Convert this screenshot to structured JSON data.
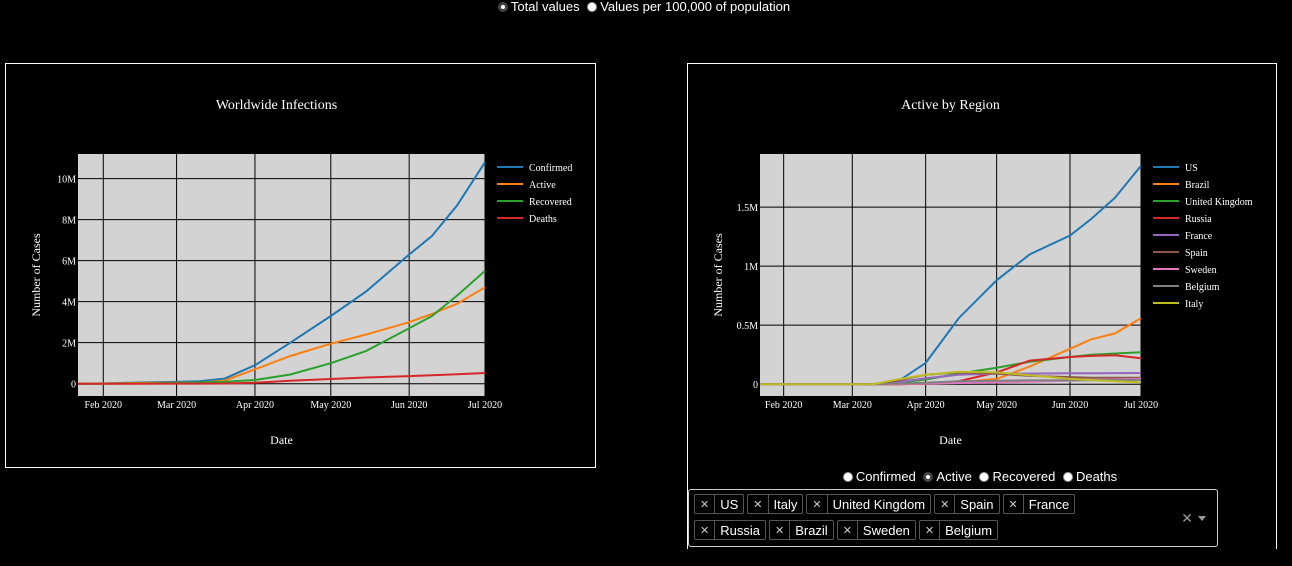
{
  "top_toggle": {
    "options": [
      "Total values",
      "Values per 100,000 of population"
    ],
    "selected": 0
  },
  "metric_toggle": {
    "options": [
      "Confirmed",
      "Active",
      "Recovered",
      "Deaths"
    ],
    "selected": 1
  },
  "region_select": {
    "selected": [
      "US",
      "Italy",
      "United Kingdom",
      "Spain",
      "France",
      "Russia",
      "Brazil",
      "Sweden",
      "Belgium"
    ]
  },
  "chart_data": [
    {
      "type": "line",
      "title": "Worldwide Infections",
      "xlabel": "Date",
      "ylabel": "Number of Cases",
      "x_ticks": [
        "Feb 2020",
        "Mar 2020",
        "Apr 2020",
        "May 2020",
        "Jun 2020",
        "Jul 2020"
      ],
      "y_ticks": [
        "0",
        "2M",
        "4M",
        "6M",
        "8M",
        "10M"
      ],
      "y_tick_values": [
        0,
        2000000,
        4000000,
        6000000,
        8000000,
        10000000
      ],
      "ylim": [
        -600000,
        11200000
      ],
      "xlim": [
        "2020-01-22",
        "2020-07-01"
      ],
      "grid": true,
      "legend_position": "top-right",
      "x": [
        "2020-01-22",
        "2020-02-01",
        "2020-02-15",
        "2020-03-01",
        "2020-03-10",
        "2020-03-20",
        "2020-04-01",
        "2020-04-15",
        "2020-05-01",
        "2020-05-15",
        "2020-06-01",
        "2020-06-10",
        "2020-06-20",
        "2020-07-01"
      ],
      "series": [
        {
          "name": "Confirmed",
          "color": "#1f77b4",
          "values": [
            0,
            10000,
            60000,
            88000,
            120000,
            250000,
            900000,
            2000000,
            3300000,
            4500000,
            6300000,
            7200000,
            8700000,
            10800000
          ]
        },
        {
          "name": "Active",
          "color": "#ff7f0e",
          "values": [
            0,
            10000,
            40000,
            45000,
            50000,
            150000,
            700000,
            1350000,
            1950000,
            2400000,
            3000000,
            3400000,
            3900000,
            4700000
          ]
        },
        {
          "name": "Recovered",
          "color": "#2ca02c",
          "values": [
            0,
            0,
            10000,
            40000,
            60000,
            90000,
            180000,
            450000,
            1000000,
            1600000,
            2700000,
            3300000,
            4300000,
            5500000
          ]
        },
        {
          "name": "Deaths",
          "color": "#d62728",
          "values": [
            0,
            0,
            1000,
            3000,
            4000,
            10000,
            50000,
            140000,
            230000,
            300000,
            370000,
            410000,
            460000,
            520000
          ]
        }
      ]
    },
    {
      "type": "line",
      "title": "Active  by Region",
      "xlabel": "Date",
      "ylabel": "Number of Cases",
      "x_ticks": [
        "Feb 2020",
        "Mar 2020",
        "Apr 2020",
        "May 2020",
        "Jun 2020",
        "Jul 2020"
      ],
      "y_ticks": [
        "0",
        "0.5M",
        "1M",
        "1.5M"
      ],
      "y_tick_values": [
        0,
        500000,
        1000000,
        1500000
      ],
      "ylim": [
        -100000,
        1950000
      ],
      "xlim": [
        "2020-01-22",
        "2020-07-01"
      ],
      "grid": true,
      "legend_position": "top-right",
      "x": [
        "2020-01-22",
        "2020-02-01",
        "2020-03-01",
        "2020-03-10",
        "2020-03-20",
        "2020-04-01",
        "2020-04-15",
        "2020-05-01",
        "2020-05-15",
        "2020-06-01",
        "2020-06-10",
        "2020-06-20",
        "2020-07-01"
      ],
      "series": [
        {
          "name": "US",
          "color": "#1f77b4",
          "values": [
            0,
            0,
            0,
            0,
            20000,
            180000,
            560000,
            880000,
            1100000,
            1260000,
            1400000,
            1580000,
            1850000
          ]
        },
        {
          "name": "Brazil",
          "color": "#ff7f0e",
          "values": [
            0,
            0,
            0,
            0,
            0,
            5000,
            15000,
            45000,
            150000,
            300000,
            380000,
            430000,
            560000
          ]
        },
        {
          "name": "United Kingdom",
          "color": "#2ca02c",
          "values": [
            0,
            0,
            0,
            0,
            10000,
            40000,
            90000,
            140000,
            190000,
            230000,
            250000,
            260000,
            270000
          ]
        },
        {
          "name": "Russia",
          "color": "#d62728",
          "values": [
            0,
            0,
            0,
            0,
            0,
            3000,
            25000,
            100000,
            200000,
            230000,
            240000,
            245000,
            220000
          ]
        },
        {
          "name": "France",
          "color": "#9467bd",
          "values": [
            0,
            0,
            0,
            0,
            15000,
            50000,
            80000,
            90000,
            90000,
            92000,
            93000,
            94000,
            95000
          ]
        },
        {
          "name": "Spain",
          "color": "#8c564b",
          "values": [
            0,
            0,
            0,
            0,
            30000,
            80000,
            100000,
            90000,
            70000,
            60000,
            55000,
            55000,
            55000
          ]
        },
        {
          "name": "Sweden",
          "color": "#e377c2",
          "values": [
            0,
            0,
            0,
            0,
            2000,
            5000,
            10000,
            15000,
            20000,
            30000,
            35000,
            40000,
            45000
          ]
        },
        {
          "name": "Belgium",
          "color": "#7f7f7f",
          "values": [
            0,
            0,
            0,
            0,
            5000,
            12000,
            25000,
            30000,
            32000,
            33000,
            34000,
            35000,
            36000
          ]
        },
        {
          "name": "Italy",
          "color": "#bcbd22",
          "values": [
            0,
            0,
            0,
            1000,
            40000,
            80000,
            105000,
            100000,
            75000,
            45000,
            35000,
            25000,
            15000
          ]
        }
      ]
    }
  ]
}
